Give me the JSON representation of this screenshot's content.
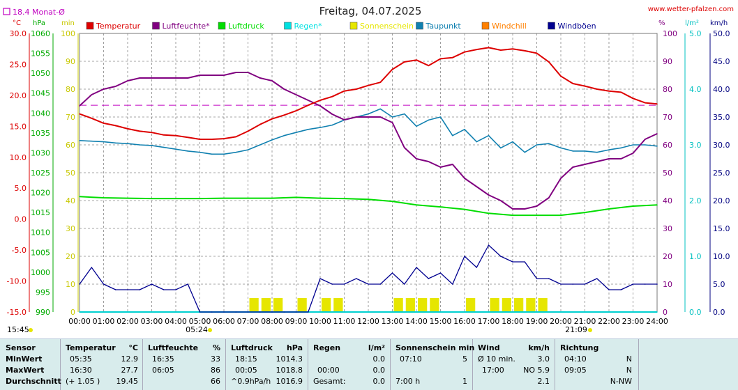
{
  "title": "Freitag, 04.07.2025",
  "site": "www.wetter-pfalzen.com",
  "monthly_avg_label": "18.4 Monat-Ø",
  "timestamp": "15:45",
  "sunrise_label": "05:24",
  "sunset_label": "21:09",
  "units": {
    "degc": "°C",
    "hpa": "hPa",
    "min": "min",
    "pct": "%",
    "lm2": "l/m²",
    "kmh": "km/h"
  },
  "legend": [
    {
      "label": "Temperatur",
      "color": "#dd0000"
    },
    {
      "label": "Luftfeuchte*",
      "color": "#800080"
    },
    {
      "label": "Luftdruck",
      "color": "#00dd00"
    },
    {
      "label": "Regen*",
      "color": "#00e0e0"
    },
    {
      "label": "Sonnenschein",
      "color": "#e6e600"
    },
    {
      "label": "Taupunkt",
      "color": "#1080b0"
    },
    {
      "label": "Windchill",
      "color": "#ff8000"
    },
    {
      "label": "Windböen",
      "color": "#000090"
    }
  ],
  "colors": {
    "temp": "#dd0000",
    "hum": "#800080",
    "press": "#00dd00",
    "rain": "#00d0d0",
    "sun": "#e6e600",
    "dew": "#1080b0",
    "wind": "#000090",
    "avg": "#c000c0",
    "grid": "#888888"
  },
  "axes": {
    "temp": [
      "30.0",
      "25.0",
      "20.0",
      "15.0",
      "10.0",
      "5.0",
      "0.0",
      "-5.0",
      "-10.0",
      "-15.0"
    ],
    "press": [
      "1060",
      "1055",
      "1050",
      "1045",
      "1040",
      "1035",
      "1030",
      "1025",
      "1020",
      "1015",
      "1010",
      "1005",
      "1000",
      "995",
      "990"
    ],
    "sunmin": [
      "100",
      "90",
      "80",
      "70",
      "60",
      "50",
      "40",
      "30",
      "20",
      "10",
      "0"
    ],
    "hum": [
      "100",
      "90",
      "80",
      "70",
      "60",
      "50",
      "40",
      "30",
      "20",
      "10",
      "0"
    ],
    "rain": [
      "5.0",
      "4.0",
      "3.0",
      "2.0",
      "1.0",
      "0.0"
    ],
    "wind": [
      "50.0",
      "45.0",
      "40.0",
      "35.0",
      "30.0",
      "25.0",
      "20.0",
      "15.0",
      "10.0",
      "5.0",
      "0.0"
    ],
    "time": [
      "00:00",
      "01:00",
      "02:00",
      "03:00",
      "04:00",
      "05:00",
      "06:00",
      "07:00",
      "08:00",
      "09:00",
      "10:00",
      "11:00",
      "12:00",
      "13:00",
      "14:00",
      "15:00",
      "16:00",
      "17:00",
      "18:00",
      "19:00",
      "20:00",
      "21:00",
      "22:00",
      "23:00",
      "24:00"
    ]
  },
  "chart_data": {
    "type": "line",
    "title": "Freitag, 04.07.2025",
    "x_unit": "hour",
    "xlim": [
      0,
      24
    ],
    "monthly_average_temp": 18.4,
    "series": [
      {
        "name": "Temperatur",
        "unit": "°C",
        "ylim": [
          -15,
          30
        ],
        "x": [
          0,
          0.5,
          1,
          1.5,
          2,
          2.5,
          3,
          3.5,
          4,
          4.5,
          5,
          5.5,
          6,
          6.5,
          7,
          7.5,
          8,
          8.5,
          9,
          9.5,
          10,
          10.5,
          11,
          11.5,
          12,
          12.5,
          13,
          13.5,
          14,
          14.5,
          15,
          15.5,
          16,
          16.5,
          17,
          17.5,
          18,
          18.5,
          19,
          19.5,
          20,
          20.5,
          21,
          21.5,
          22,
          22.5,
          23,
          23.5,
          24
        ],
        "y": [
          17.0,
          16.3,
          15.5,
          15.1,
          14.6,
          14.2,
          14.0,
          13.6,
          13.5,
          13.2,
          12.9,
          12.9,
          13.0,
          13.3,
          14.2,
          15.3,
          16.2,
          16.8,
          17.5,
          18.4,
          19.2,
          19.8,
          20.7,
          21.0,
          21.6,
          22.1,
          24.2,
          25.4,
          25.7,
          24.8,
          25.9,
          26.1,
          27.0,
          27.4,
          27.7,
          27.3,
          27.5,
          27.2,
          26.8,
          25.4,
          23.1,
          21.9,
          21.5,
          21.0,
          20.7,
          20.5,
          19.5,
          18.8,
          18.6
        ]
      },
      {
        "name": "Luftfeuchte*",
        "unit": "%",
        "ylim": [
          0,
          100
        ],
        "x": [
          0,
          0.5,
          1,
          1.5,
          2,
          2.5,
          3,
          3.5,
          4,
          4.5,
          5,
          5.5,
          6,
          6.5,
          7,
          7.5,
          8,
          8.5,
          9,
          9.5,
          10,
          10.5,
          11,
          11.5,
          12,
          12.5,
          13,
          13.5,
          14,
          14.5,
          15,
          15.5,
          16,
          16.5,
          17,
          17.5,
          18,
          18.5,
          19,
          19.5,
          20,
          20.5,
          21,
          21.5,
          22,
          22.5,
          23,
          23.5,
          24
        ],
        "y": [
          74,
          78,
          80,
          81,
          83,
          84,
          84,
          84,
          84,
          84,
          85,
          85,
          85,
          86,
          86,
          84,
          83,
          80,
          78,
          76,
          74,
          71,
          69,
          70,
          70,
          70,
          68,
          59,
          55,
          54,
          52,
          53,
          48,
          45,
          42,
          40,
          37,
          37,
          38,
          41,
          48,
          52,
          53,
          54,
          55,
          55,
          57,
          62,
          64
        ]
      },
      {
        "name": "Luftdruck",
        "unit": "hPa",
        "ylim": [
          990,
          1060
        ],
        "x": [
          0,
          1,
          2,
          3,
          4,
          5,
          6,
          7,
          8,
          9,
          10,
          11,
          12,
          13,
          14,
          15,
          16,
          17,
          18,
          19,
          20,
          21,
          22,
          23,
          24
        ],
        "y": [
          1019.0,
          1018.7,
          1018.6,
          1018.5,
          1018.5,
          1018.5,
          1018.6,
          1018.6,
          1018.6,
          1018.8,
          1018.6,
          1018.5,
          1018.3,
          1017.8,
          1016.9,
          1016.4,
          1015.8,
          1014.8,
          1014.3,
          1014.3,
          1014.3,
          1015.0,
          1015.9,
          1016.6,
          1016.9
        ]
      },
      {
        "name": "Taupunkt",
        "unit": "°C",
        "ylim": [
          -15,
          30
        ],
        "x": [
          0,
          0.5,
          1,
          1.5,
          2,
          2.5,
          3,
          3.5,
          4,
          4.5,
          5,
          5.5,
          6,
          6.5,
          7,
          7.5,
          8,
          8.5,
          9,
          9.5,
          10,
          10.5,
          11,
          11.5,
          12,
          12.5,
          13,
          13.5,
          14,
          14.5,
          15,
          15.5,
          16,
          16.5,
          17,
          17.5,
          18,
          18.5,
          19,
          19.5,
          20,
          20.5,
          21,
          21.5,
          22,
          22.5,
          23,
          23.5,
          24
        ],
        "y": [
          12.7,
          12.6,
          12.5,
          12.3,
          12.2,
          12.0,
          11.9,
          11.6,
          11.3,
          11.0,
          10.8,
          10.5,
          10.5,
          10.8,
          11.2,
          12.0,
          12.8,
          13.5,
          14.0,
          14.5,
          14.8,
          15.2,
          16.0,
          16.5,
          17.0,
          17.8,
          16.5,
          17.0,
          15.0,
          16.0,
          16.5,
          13.5,
          14.5,
          12.5,
          13.5,
          11.5,
          12.5,
          10.8,
          12.0,
          12.2,
          11.5,
          11.0,
          11.0,
          10.8,
          11.2,
          11.5,
          12.0,
          12.0,
          11.8
        ]
      },
      {
        "name": "Windböen",
        "unit": "km/h",
        "ylim": [
          0,
          50
        ],
        "x": [
          0,
          0.5,
          1,
          1.5,
          2,
          2.5,
          3,
          3.5,
          4,
          4.5,
          5,
          5.5,
          6,
          6.5,
          7,
          7.5,
          8,
          8.5,
          9,
          9.5,
          10,
          10.5,
          11,
          11.5,
          12,
          12.5,
          13,
          13.5,
          14,
          14.5,
          15,
          15.5,
          16,
          16.5,
          17,
          17.5,
          18,
          18.5,
          19,
          19.5,
          20,
          20.5,
          21,
          21.5,
          22,
          22.5,
          23,
          23.5,
          24
        ],
        "y": [
          5,
          8,
          5,
          4,
          4,
          4,
          5,
          4,
          4,
          5,
          0,
          0,
          0,
          0,
          0,
          0,
          0,
          0,
          0,
          0,
          6,
          5,
          5,
          6,
          5,
          5,
          7,
          5,
          8,
          6,
          7,
          5,
          10,
          8,
          12,
          10,
          9,
          9,
          6,
          6,
          5,
          5,
          5,
          6,
          4,
          4,
          5,
          5,
          5
        ]
      },
      {
        "name": "Sonnenschein",
        "unit": "min",
        "ylim": [
          0,
          100
        ],
        "x": [
          0,
          0.5,
          1,
          1.5,
          2,
          2.5,
          3,
          3.5,
          4,
          4.5,
          5,
          5.5,
          6,
          6.5,
          7,
          7.5,
          8,
          8.5,
          9,
          9.5,
          10,
          10.5,
          11,
          11.5,
          12,
          12.5,
          13,
          13.5,
          14,
          14.5,
          15,
          15.5,
          16,
          16.5,
          17,
          17.5,
          18,
          18.5,
          19,
          19.5,
          20,
          20.5,
          21,
          21.5,
          22,
          22.5,
          23,
          23.5,
          24
        ],
        "y": [
          0,
          0,
          0,
          0,
          0,
          0,
          0,
          0,
          0,
          0,
          0,
          0,
          0,
          0,
          5,
          5,
          5,
          0,
          5,
          0,
          5,
          5,
          0,
          0,
          0,
          0,
          5,
          5,
          5,
          5,
          0,
          0,
          5,
          0,
          5,
          5,
          5,
          5,
          5,
          0,
          0,
          0,
          0,
          0,
          0,
          0,
          0,
          0,
          0
        ]
      },
      {
        "name": "Regen*",
        "unit": "l/m²",
        "ylim": [
          0,
          5
        ],
        "x": [
          0,
          24
        ],
        "y": [
          0,
          0
        ]
      }
    ]
  },
  "stats": {
    "sensor_header": "Sensor",
    "min_label": "MinWert",
    "max_label": "MaxWert",
    "avg_label": "Durchschnitt",
    "temp": {
      "header": "Temperatur",
      "unit": "°C",
      "min_time": "05:35",
      "min_val": "12.9",
      "max_time": "16:30",
      "max_val": "27.7",
      "avg_note": "(+ 1.05 )",
      "avg_val": "19.45"
    },
    "hum": {
      "header": "Luftfeuchte",
      "unit": "%",
      "min_time": "16:35",
      "min_val": "33",
      "max_time": "06:05",
      "max_val": "86",
      "avg_val": "66"
    },
    "press": {
      "header": "Luftdruck",
      "unit": "hPa",
      "min_time": "18:15",
      "min_val": "1014.3",
      "max_time": "00:05",
      "max_val": "1018.8",
      "avg_note": "^0.9hPa/h",
      "avg_val": "1016.9"
    },
    "rain": {
      "header": "Regen",
      "unit": "l/m²",
      "min_val": "0.0",
      "max_time": "00:00",
      "max_val": "0.0",
      "avg_note": "Gesamt:",
      "avg_val": "0.0"
    },
    "sun": {
      "header": "Sonnenschein min",
      "min_time": "07:10",
      "min_val": "5",
      "max_val": "",
      "avg_note": "7:00 h",
      "avg_val": "1"
    },
    "wind": {
      "header": "Wind",
      "unit": "km/h",
      "min_note": "Ø 10 min.",
      "min_val": "3.0",
      "max_time": "17:00",
      "max_val": "NO 5.9",
      "avg_val": "2.1"
    },
    "dir": {
      "header": "Richtung",
      "min_time": "04:10",
      "min_val": "N",
      "max_time": "09:05",
      "max_val": "N",
      "avg_val": "N-NW"
    }
  }
}
